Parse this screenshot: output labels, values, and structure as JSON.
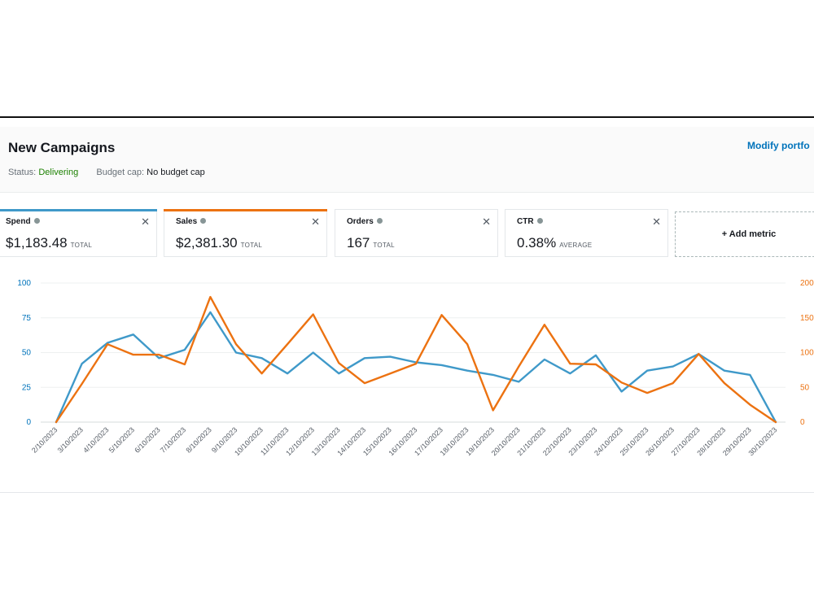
{
  "header": {
    "title": "New Campaigns",
    "modify_link": "Modify portfo",
    "status_label": "Status:",
    "status_value": "Delivering",
    "budget_label": "Budget cap:",
    "budget_value": "No budget cap"
  },
  "metrics": [
    {
      "label": "Spend",
      "value": "$1,183.48",
      "unit": "TOTAL",
      "color": "#3f99c9"
    },
    {
      "label": "Sales",
      "value": "$2,381.30",
      "unit": "TOTAL",
      "color": "#ec7211"
    },
    {
      "label": "Orders",
      "value": "167",
      "unit": "TOTAL",
      "color": ""
    },
    {
      "label": "CTR",
      "value": "0.38%",
      "unit": "AVERAGE",
      "color": ""
    }
  ],
  "add_metric_label": "+ Add metric",
  "chart_data": {
    "type": "line",
    "x": [
      "2/10/2023",
      "3/10/2023",
      "4/10/2023",
      "5/10/2023",
      "6/10/2023",
      "7/10/2023",
      "8/10/2023",
      "9/10/2023",
      "10/10/2023",
      "11/10/2023",
      "12/10/2023",
      "13/10/2023",
      "14/10/2023",
      "15/10/2023",
      "16/10/2023",
      "17/10/2023",
      "18/10/2023",
      "19/10/2023",
      "20/10/2023",
      "21/10/2023",
      "22/10/2023",
      "23/10/2023",
      "24/10/2023",
      "25/10/2023",
      "26/10/2023",
      "27/10/2023",
      "28/10/2023",
      "29/10/2023",
      "30/10/2023"
    ],
    "series": [
      {
        "name": "Spend",
        "axis": "left",
        "color": "#3f99c9",
        "values": [
          0,
          42,
          57,
          63,
          46,
          52,
          79,
          50,
          46,
          35,
          50,
          35,
          46,
          47,
          43,
          41,
          37,
          34,
          29,
          45,
          35,
          48,
          22,
          37,
          40,
          49,
          37,
          34,
          0
        ]
      },
      {
        "name": "Sales",
        "axis": "right",
        "color": "#ec7211",
        "values": [
          0,
          55,
          112,
          97,
          97,
          83,
          180,
          112,
          70,
          112,
          155,
          85,
          56,
          70,
          84,
          154,
          112,
          17,
          80,
          140,
          84,
          83,
          57,
          42,
          56,
          98,
          56,
          25,
          0
        ]
      }
    ],
    "y_left": {
      "ticks": [
        "0",
        "25",
        "50",
        "75",
        "100"
      ],
      "range": [
        0,
        100
      ]
    },
    "y_right": {
      "ticks": [
        "0",
        "50",
        "100",
        "150",
        "200"
      ],
      "range": [
        0,
        200
      ]
    },
    "grid": true
  }
}
